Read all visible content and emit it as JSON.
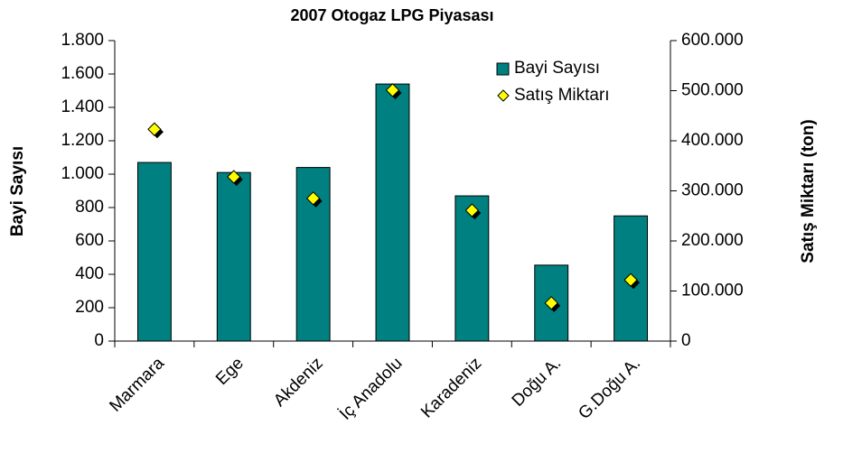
{
  "chart_data": {
    "type": "bar",
    "title": "2007 Otogaz LPG Piyasası",
    "ylabel": "Bayi Sayısı",
    "y2label": "Satış Miktarı (ton)",
    "categories": [
      "Marmara",
      "Ege",
      "Akdeniz",
      "İç Anadolu",
      "Karadeniz",
      "Doğu A.",
      "G.Doğu A."
    ],
    "series": [
      {
        "name": "Bayi Sayısı",
        "type": "bar",
        "color": "#008080",
        "values": [
          1070,
          1010,
          1040,
          1540,
          870,
          455,
          750
        ]
      },
      {
        "name": "Satış Miktarı",
        "type": "scatter",
        "axis": "y2",
        "color": "#ffff00",
        "values": [
          423000,
          328000,
          285000,
          501000,
          261000,
          76000,
          122000
        ]
      }
    ],
    "ylim": [
      0,
      1800
    ],
    "yticks": [
      0,
      200,
      400,
      600,
      800,
      {
        "value": 1000,
        "label": "1.000"
      },
      {
        "value": 1200,
        "label": "1.200"
      },
      {
        "value": 1400,
        "label": "1.400"
      },
      {
        "value": 1600,
        "label": "1.600"
      },
      {
        "value": 1800,
        "label": "1.800"
      }
    ],
    "y2lim": [
      0,
      600000
    ],
    "y2ticks": [
      0,
      {
        "value": 100000,
        "label": "100.000"
      },
      {
        "value": 200000,
        "label": "200.000"
      },
      {
        "value": 300000,
        "label": "300.000"
      },
      {
        "value": 400000,
        "label": "400.000"
      },
      {
        "value": 500000,
        "label": "500.000"
      },
      {
        "value": 600000,
        "label": "600.000"
      }
    ],
    "legend": "upper right",
    "grid": false
  }
}
